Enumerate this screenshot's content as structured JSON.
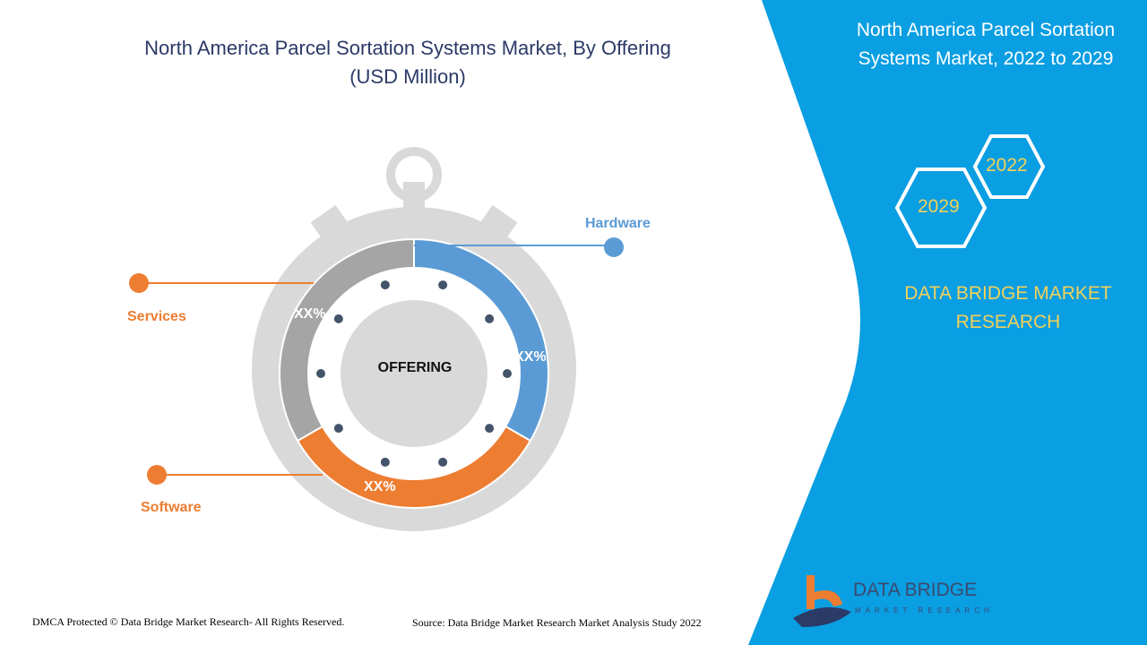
{
  "header": {
    "title_line1": "North America Parcel Sortation Systems Market, By Offering",
    "title_line2": "(USD Million)"
  },
  "side_panel": {
    "title_line1": "North America Parcel Sortation",
    "title_line2": "Systems Market, 2022 to 2029",
    "year_a": "2022",
    "year_b": "2029",
    "brand_line1": "DATA BRIDGE MARKET",
    "brand_line2": "RESEARCH",
    "panel_color": "#0a9ee2"
  },
  "chart_data": {
    "type": "pie",
    "title": "North America Parcel Sortation Systems Market, By Offering (USD Million)",
    "center_label": "OFFERING",
    "categories": [
      "Hardware",
      "Software",
      "Services"
    ],
    "colors": [
      "#5b9bd5",
      "#ed7d31",
      "#a5a5a5"
    ],
    "data_labels": [
      "XX%",
      "XX%",
      "XX%"
    ]
  },
  "footer": {
    "copyright": "DMCA Protected © Data Bridge Market Research- All Rights Reserved.",
    "source": "Source: Data Bridge Market Research Market Analysis Study 2022"
  },
  "logo": {
    "name": "DATA BRIDGE",
    "tagline": "MARKET RESEARCH"
  }
}
